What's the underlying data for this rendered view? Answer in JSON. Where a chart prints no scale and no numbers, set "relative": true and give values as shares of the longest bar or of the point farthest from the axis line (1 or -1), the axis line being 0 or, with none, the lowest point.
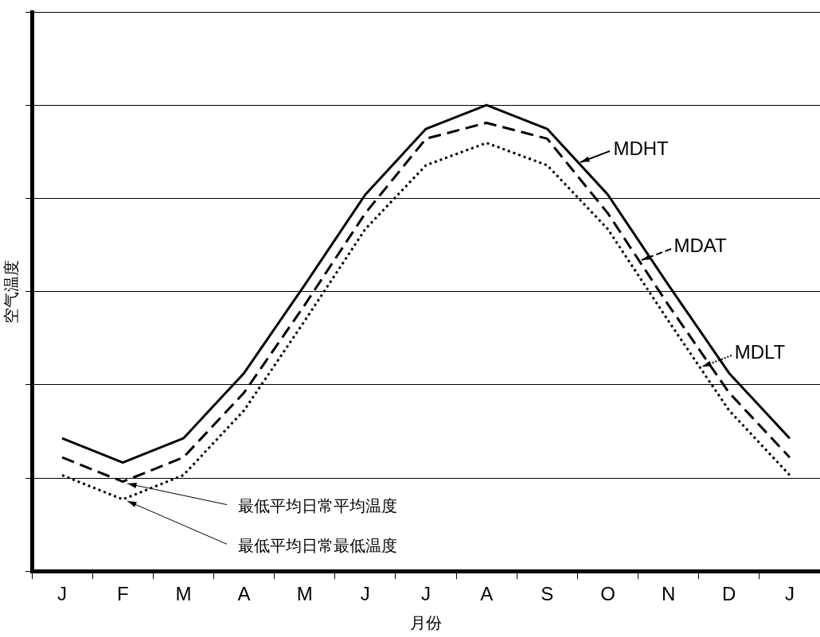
{
  "chart_data": {
    "type": "line",
    "relative": true,
    "xlabel": "月份",
    "ylabel": "空气温度",
    "categories": [
      "J",
      "F",
      "M",
      "A",
      "M",
      "J",
      "J",
      "A",
      "S",
      "O",
      "N",
      "D",
      "J"
    ],
    "series": [
      {
        "name": "MDHT",
        "color": "#000000",
        "line_style": "solid",
        "values": [
          0.285,
          0.233,
          0.285,
          0.425,
          0.614,
          0.808,
          0.949,
          1,
          0.949,
          0.808,
          0.614,
          0.425,
          0.285
        ]
      },
      {
        "name": "MDAT",
        "color": "#000000",
        "line_style": "dashed",
        "values": [
          0.244,
          0.192,
          0.244,
          0.383,
          0.571,
          0.768,
          0.928,
          0.962,
          0.928,
          0.768,
          0.571,
          0.383,
          0.244
        ]
      },
      {
        "name": "MDLT",
        "color": "#000000",
        "line_style": "dotted",
        "values": [
          0.206,
          0.154,
          0.206,
          0.345,
          0.537,
          0.734,
          0.871,
          0.919,
          0.871,
          0.734,
          0.537,
          0.345,
          0.206
        ]
      }
    ],
    "annotations": [
      {
        "text": "最低平均日常平均温度",
        "x": "F",
        "y": 0.192
      },
      {
        "text": "最低平均日常最低温度",
        "x": "F",
        "y": 0.154
      }
    ],
    "grid": "y",
    "legend": "right",
    "marker": "none"
  }
}
